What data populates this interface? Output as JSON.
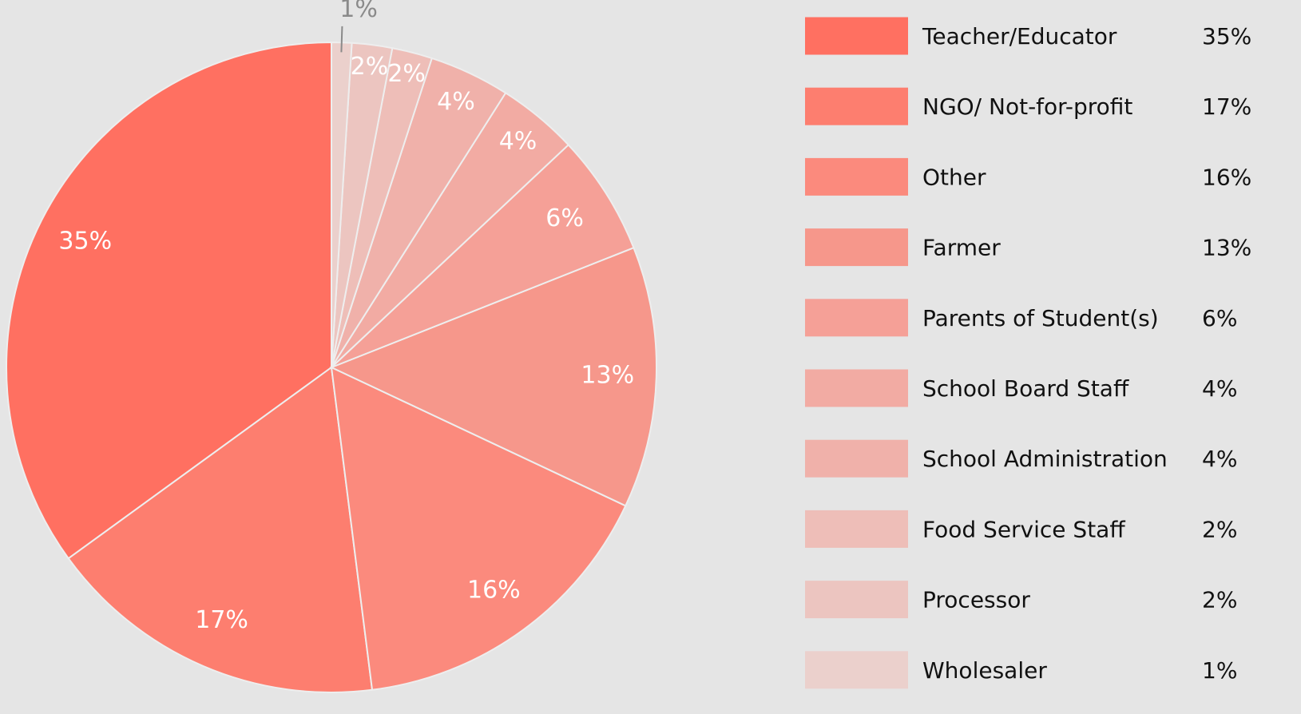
{
  "chart_data": {
    "type": "pie",
    "categories": [
      "Teacher/Educator",
      "NGO/ Not-for-profit",
      "Other",
      "Farmer",
      "Parents of Student(s)",
      "School Board Staff",
      "School Administration",
      "Food Service Staff",
      "Processor",
      "Wholesaler"
    ],
    "values": [
      35,
      17,
      16,
      13,
      6,
      4,
      4,
      2,
      2,
      1
    ],
    "value_labels": [
      "35%",
      "17%",
      "16%",
      "13%",
      "6%",
      "4%",
      "4%",
      "2%",
      "2%",
      "1%"
    ],
    "colors": [
      "#ff7061",
      "#fd7e6f",
      "#fb8a7d",
      "#f6978b",
      "#f5a097",
      "#f2aba3",
      "#f0b1aa",
      "#eebeb8",
      "#ecc5c0",
      "#ebd0cc"
    ],
    "legend": "right"
  }
}
